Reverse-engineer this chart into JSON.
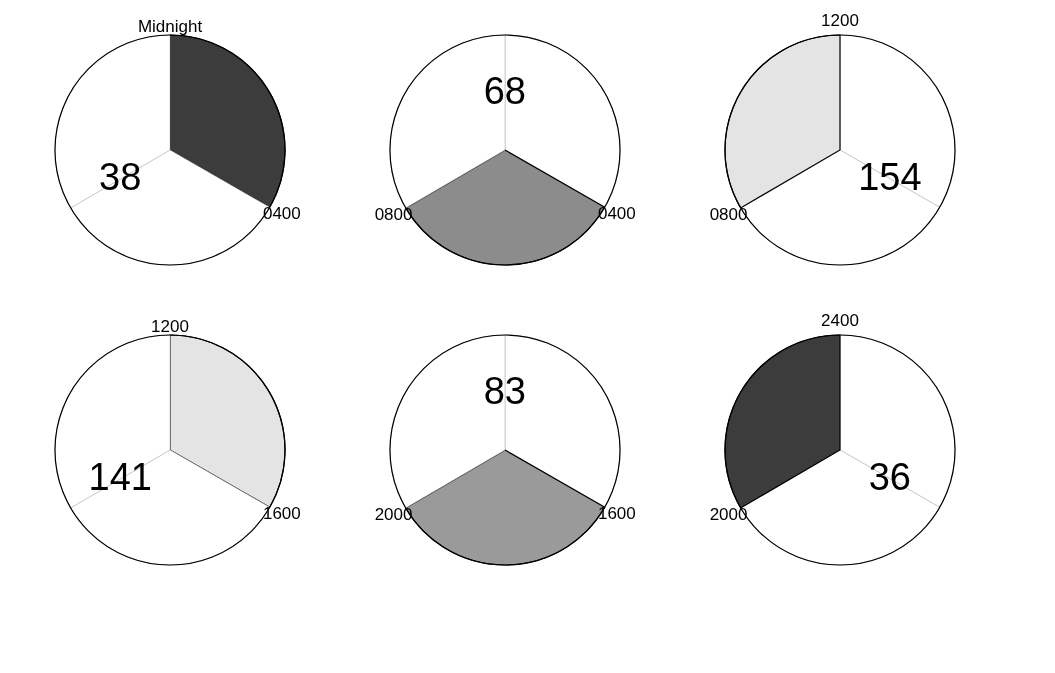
{
  "chart_data": [
    {
      "type": "pie",
      "categories": [
        null,
        null,
        null
      ],
      "values": [
        33.3,
        33.3,
        33.4
      ],
      "colors": [
        "#3c3c3c",
        "#ffffff",
        "#ffffff"
      ],
      "annotations": [
        "Midnight",
        "0400",
        "38"
      ]
    },
    {
      "type": "pie",
      "categories": [
        null,
        null,
        null
      ],
      "values": [
        33.3,
        33.3,
        33.4
      ],
      "colors": [
        "#ffffff",
        "#8c8c8c",
        "#ffffff"
      ],
      "annotations": [
        "0400",
        "0800",
        "68"
      ]
    },
    {
      "type": "pie",
      "categories": [
        null,
        null,
        null
      ],
      "values": [
        33.3,
        33.3,
        33.4
      ],
      "colors": [
        "#ffffff",
        "#ffffff",
        "#e4e4e4"
      ],
      "annotations": [
        "0800",
        "1200",
        "154"
      ]
    },
    {
      "type": "pie",
      "categories": [
        null,
        null,
        null
      ],
      "values": [
        33.3,
        33.3,
        33.4
      ],
      "colors": [
        "#e4e4e4",
        "#ffffff",
        "#ffffff"
      ],
      "annotations": [
        "1200",
        "1600",
        "141"
      ]
    },
    {
      "type": "pie",
      "categories": [
        null,
        null,
        null
      ],
      "values": [
        33.3,
        33.3,
        33.4
      ],
      "colors": [
        "#ffffff",
        "#9a9a9a",
        "#ffffff"
      ],
      "annotations": [
        "1600",
        "2000",
        "83"
      ]
    },
    {
      "type": "pie",
      "categories": [
        null,
        null,
        null
      ],
      "values": [
        33.3,
        33.3,
        33.4
      ],
      "colors": [
        "#ffffff",
        "#ffffff",
        "#3c3c3c"
      ],
      "annotations": [
        "2000",
        "2400",
        "36"
      ]
    }
  ]
}
